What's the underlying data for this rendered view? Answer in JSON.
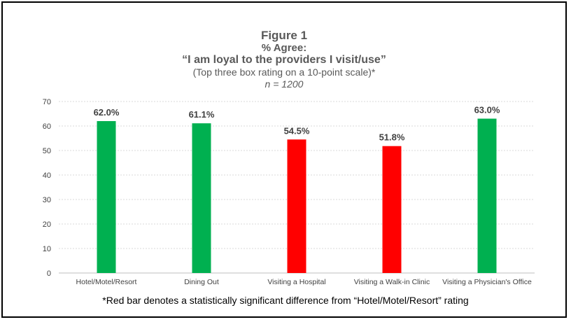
{
  "footnote": "*Red bar denotes a statistically significant difference from “Hotel/Motel/Resort” rating",
  "chart_data": {
    "type": "bar",
    "title": "Figure 1",
    "subtitle": [
      "% Agree:",
      "“I am loyal to the providers I visit/use”",
      "(Top three box rating on a 10-point scale)*",
      "n = 1200"
    ],
    "categories": [
      "Hotel/Motel/Resort",
      "Dining Out",
      "Visiting a Hospital",
      "Visiting a Walk-in Clinic",
      "Visiting a Physician's Office"
    ],
    "values": [
      62.0,
      61.1,
      54.5,
      51.8,
      63.0
    ],
    "data_labels": [
      "62.0%",
      "61.1%",
      "54.5%",
      "51.8%",
      "63.0%"
    ],
    "bar_colors": [
      "#00b050",
      "#00b050",
      "#ff0000",
      "#ff0000",
      "#00b050"
    ],
    "ylim": [
      0,
      70
    ],
    "yticks": [
      0,
      10,
      20,
      30,
      40,
      50,
      60,
      70
    ],
    "grid": true,
    "xlabel": "",
    "ylabel": ""
  }
}
